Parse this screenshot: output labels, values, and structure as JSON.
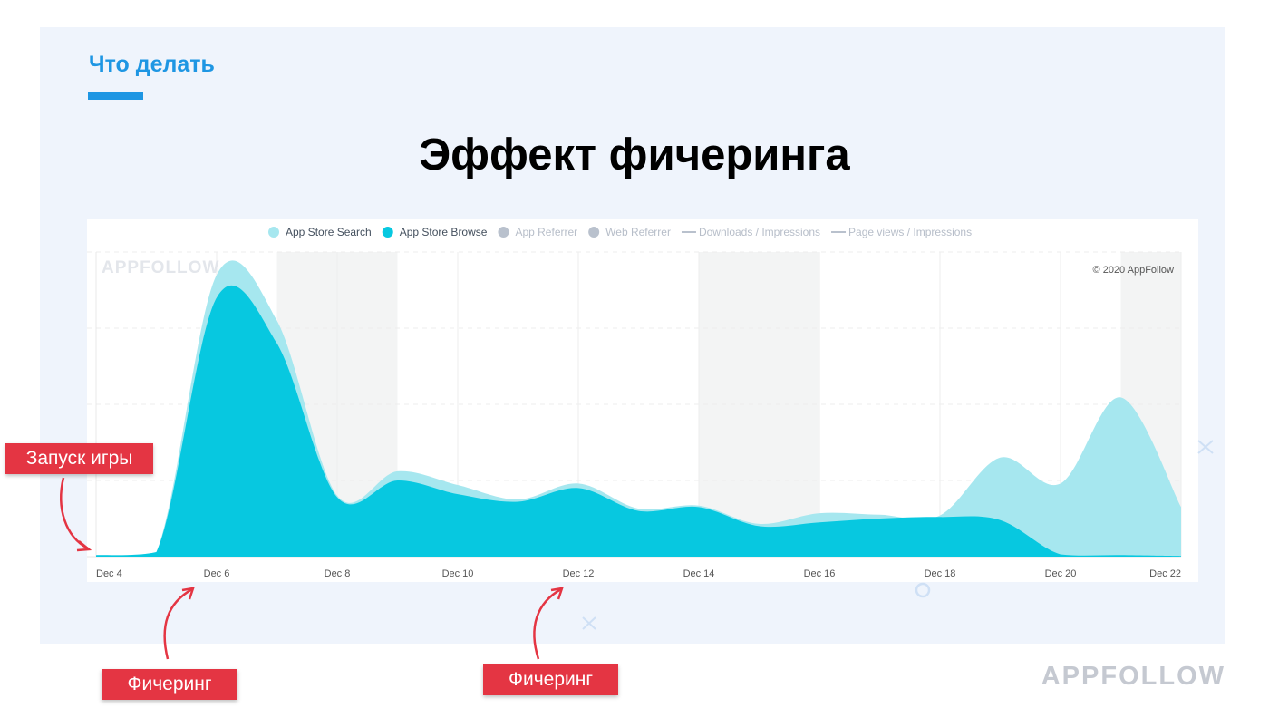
{
  "slide": {
    "section_title": "Что делать",
    "headline": "Эффект фичеринга",
    "brand": "APPFOLLOW",
    "accent_color": "#1e96e3"
  },
  "callouts": {
    "launch": "Запуск игры",
    "featuring_1": "Фичеринг",
    "featuring_2": "Фичеринг",
    "color": "#e43543"
  },
  "chart_data": {
    "type": "area",
    "watermark": "APPFOLLOW",
    "copyright": "© 2020 AppFollow",
    "x": [
      "Dec 4",
      "Dec 5",
      "Dec 6",
      "Dec 7",
      "Dec 8",
      "Dec 9",
      "Dec 10",
      "Dec 11",
      "Dec 12",
      "Dec 13",
      "Dec 14",
      "Dec 15",
      "Dec 16",
      "Dec 17",
      "Dec 18",
      "Dec 19",
      "Dec 20",
      "Dec 21",
      "Dec 22"
    ],
    "x_tick_labels": [
      "Dec 4",
      "Dec 6",
      "Dec 8",
      "Dec 10",
      "Dec 12",
      "Dec 14",
      "Dec 16",
      "Dec 18",
      "Dec 20",
      "Dec 22"
    ],
    "ylim": [
      0,
      4
    ],
    "grid": true,
    "legend_position": "top",
    "weekend_shading": [
      [
        7,
        9
      ],
      [
        14,
        16
      ],
      [
        21,
        22
      ]
    ],
    "legend": [
      {
        "name": "App Store Search",
        "marker": "dot",
        "color": "#a6e7ef",
        "active": true
      },
      {
        "name": "App Store Browse",
        "marker": "dot",
        "color": "#07c8e0",
        "active": true
      },
      {
        "name": "App Referrer",
        "marker": "dot",
        "color": "#b9c1cd",
        "active": false
      },
      {
        "name": "Web Referrer",
        "marker": "dot",
        "color": "#b9c1cd",
        "active": false
      },
      {
        "name": "Downloads / Impressions",
        "marker": "line",
        "color": "#b9c1cd",
        "active": false
      },
      {
        "name": "Page views / Impressions",
        "marker": "line",
        "color": "#b9c1cd",
        "active": false
      }
    ],
    "series": [
      {
        "name": "App Store Browse",
        "color": "#07c8e0",
        "values": [
          0.02,
          0.06,
          3.4,
          2.8,
          0.78,
          1.0,
          0.82,
          0.72,
          0.9,
          0.6,
          0.65,
          0.4,
          0.45,
          0.5,
          0.52,
          0.48,
          0.03,
          0.02,
          0.01
        ]
      },
      {
        "name": "App Store Search",
        "color": "#a6e7ef",
        "values": [
          0.0,
          0.0,
          0.3,
          0.3,
          0.02,
          0.12,
          0.12,
          0.03,
          0.06,
          0.03,
          0.02,
          0.03,
          0.12,
          0.05,
          0.02,
          0.82,
          0.93,
          2.07,
          0.64
        ]
      }
    ]
  }
}
